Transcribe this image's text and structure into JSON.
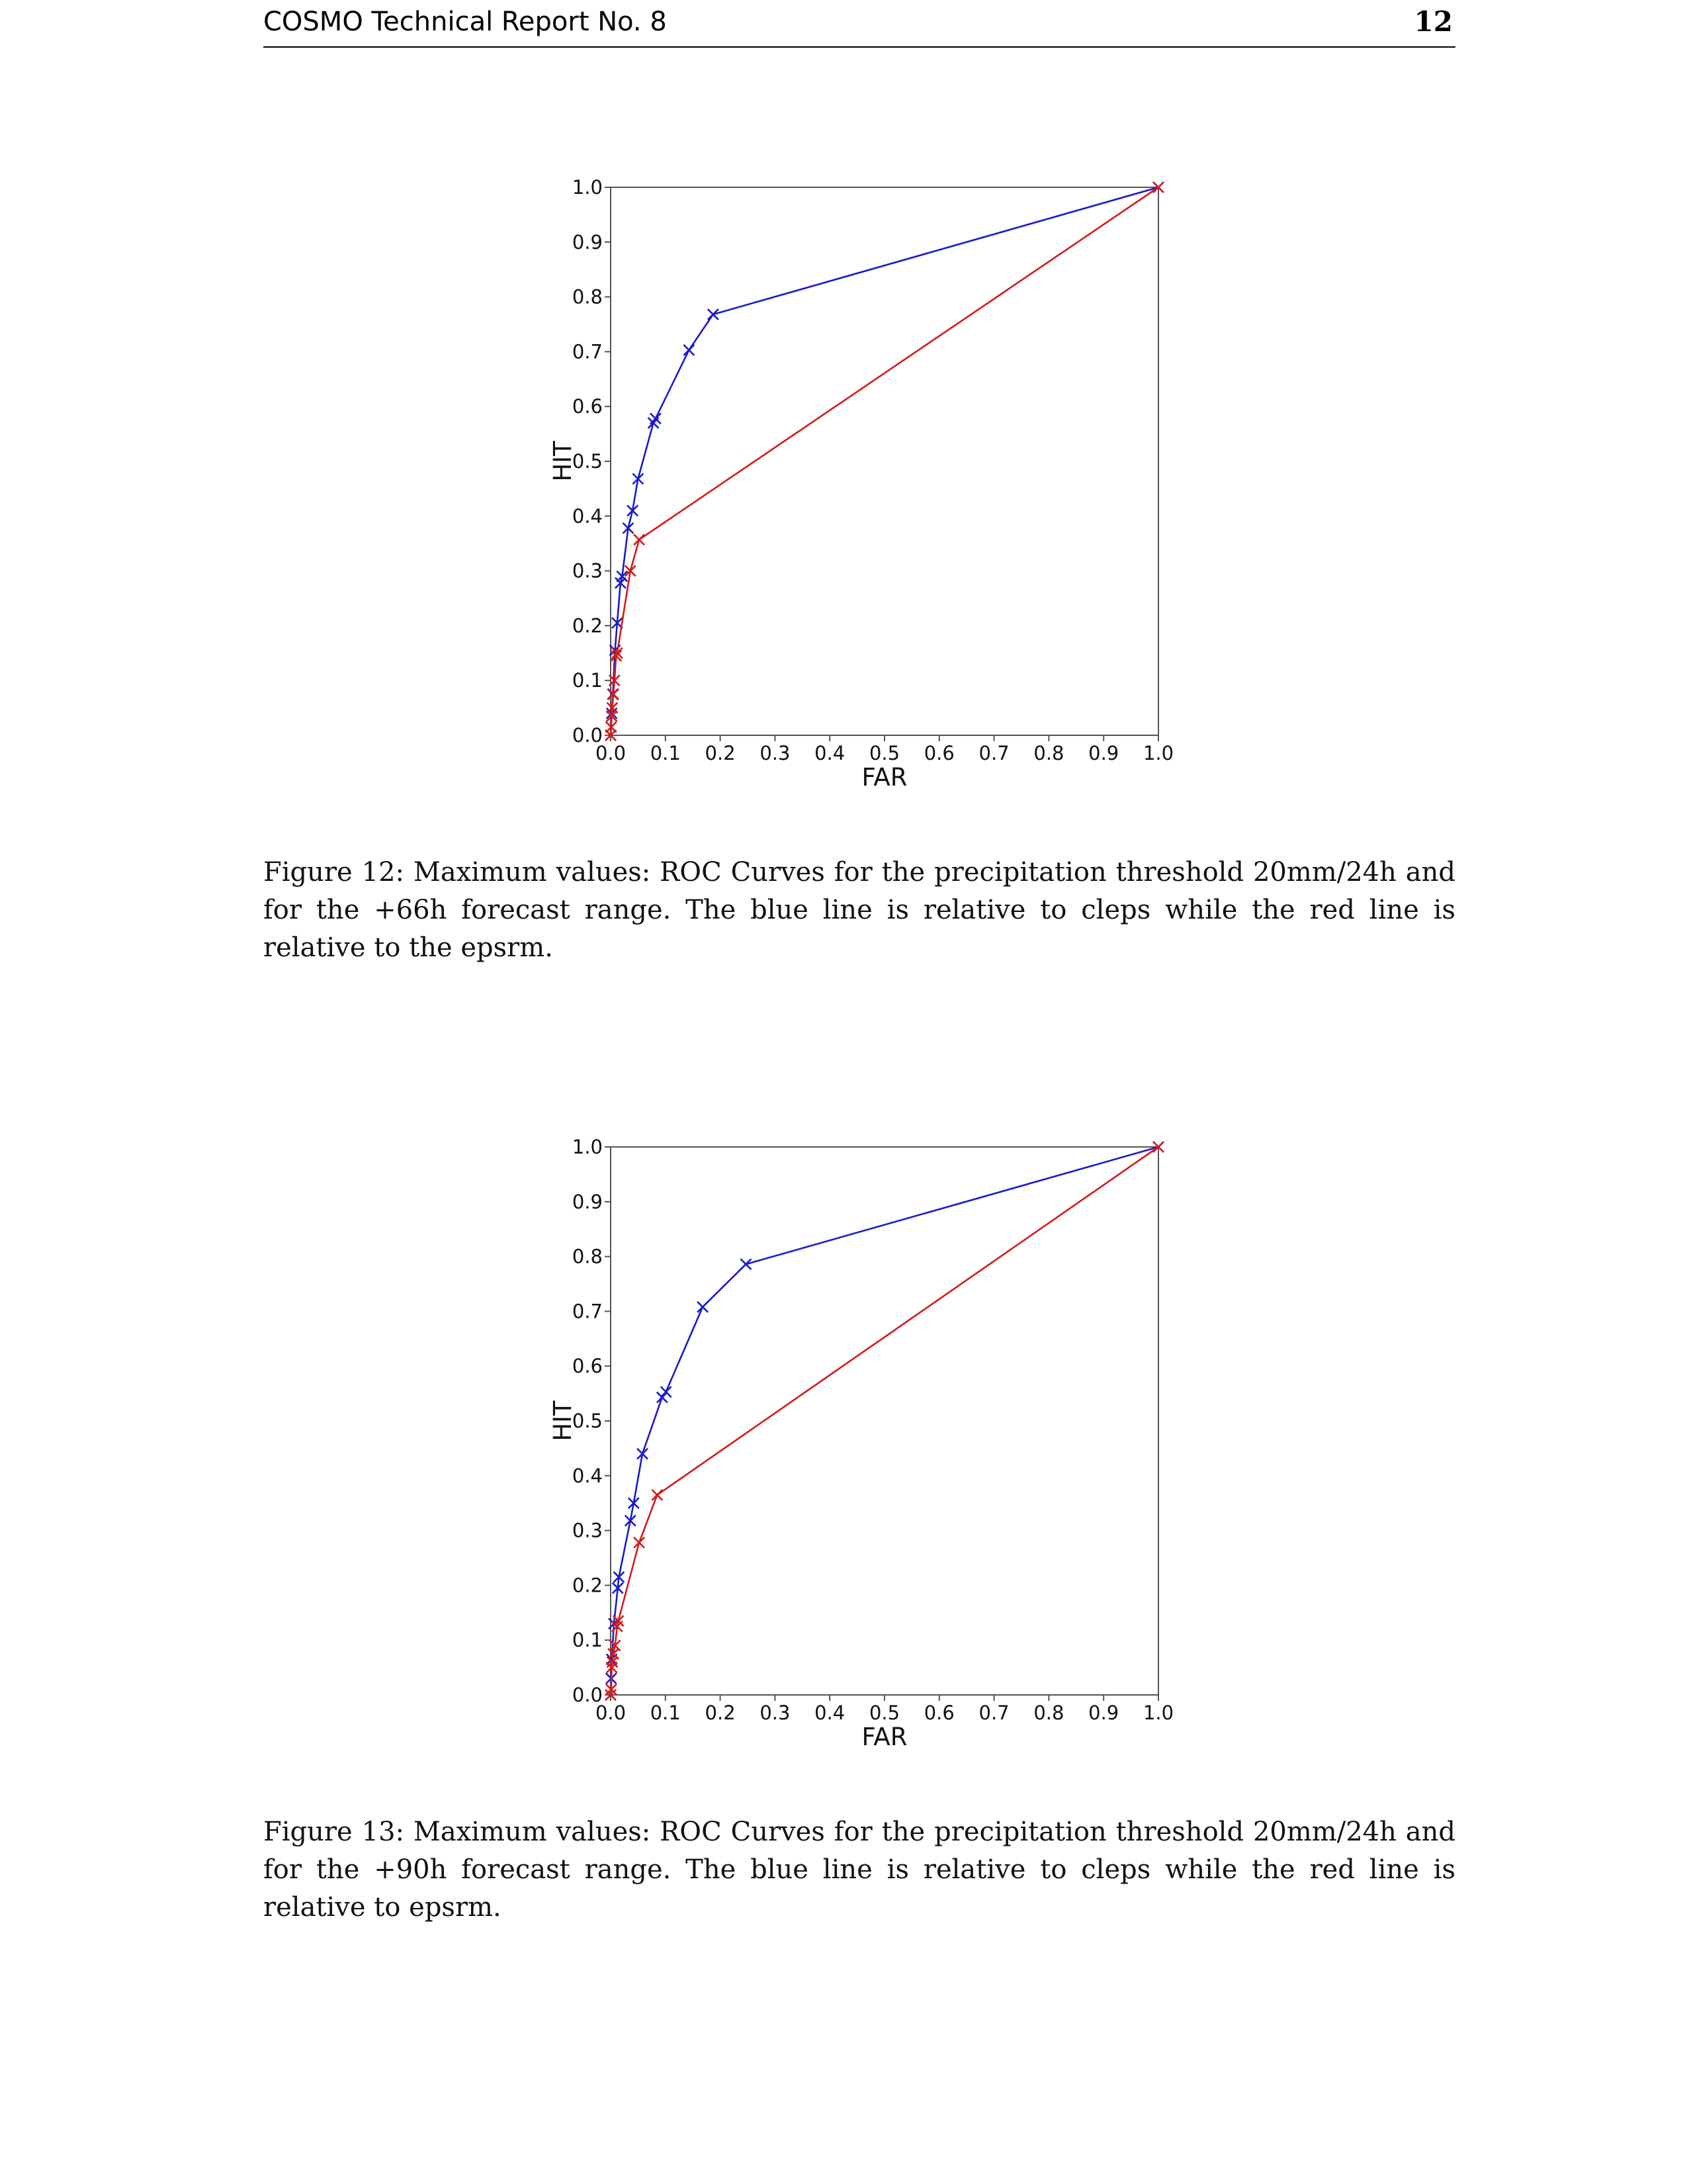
{
  "header": {
    "report_title": "COSMO Technical Report No. 8",
    "page_number": "12"
  },
  "figures": [
    {
      "caption": "Figure 12: Maximum values: ROC Curves for the precipitation threshold 20mm/24h and for the +66h forecast range. The blue line is relative to cleps while the red line is relative to the epsrm."
    },
    {
      "caption": "Figure 13: Maximum values: ROC Curves for the precipitation threshold 20mm/24h and for the +90h forecast range. The blue line is relative to cleps while the red line is relative to epsrm."
    }
  ],
  "colors": {
    "cleps": "#1a1acc",
    "epsrm": "#d41a1a"
  },
  "chart_data": [
    {
      "type": "line",
      "xlabel": "FAR",
      "ylabel": "HIT",
      "xlim": [
        0,
        1
      ],
      "ylim": [
        0,
        1
      ],
      "xticks": [
        "0.0",
        "0.1",
        "0.2",
        "0.3",
        "0.4",
        "0.5",
        "0.6",
        "0.7",
        "0.8",
        "0.9",
        "1.0"
      ],
      "yticks": [
        "0.0",
        "0.1",
        "0.2",
        "0.3",
        "0.4",
        "0.5",
        "0.6",
        "0.7",
        "0.8",
        "0.9",
        "1.0"
      ],
      "series": [
        {
          "color": "#1a1acc",
          "x": [
            0.0,
            0.002,
            0.004,
            0.008,
            0.012,
            0.018,
            0.021,
            0.032,
            0.04,
            0.05,
            0.078,
            0.082,
            0.143,
            0.187,
            1.0
          ],
          "y": [
            0.0,
            0.04,
            0.075,
            0.155,
            0.205,
            0.278,
            0.29,
            0.378,
            0.41,
            0.468,
            0.57,
            0.578,
            0.703,
            0.768,
            1.0
          ]
        },
        {
          "color": "#d41a1a",
          "x": [
            0.0,
            0.001,
            0.002,
            0.003,
            0.005,
            0.007,
            0.01,
            0.012,
            0.036,
            0.052,
            1.0
          ],
          "y": [
            0.0,
            0.015,
            0.035,
            0.05,
            0.075,
            0.1,
            0.145,
            0.15,
            0.3,
            0.357,
            1.0
          ]
        }
      ]
    },
    {
      "type": "line",
      "xlabel": "FAR",
      "ylabel": "HIT",
      "xlim": [
        0,
        1
      ],
      "ylim": [
        0,
        1
      ],
      "xticks": [
        "0.0",
        "0.1",
        "0.2",
        "0.3",
        "0.4",
        "0.5",
        "0.6",
        "0.7",
        "0.8",
        "0.9",
        "1.0"
      ],
      "yticks": [
        "0.0",
        "0.1",
        "0.2",
        "0.3",
        "0.4",
        "0.5",
        "0.6",
        "0.7",
        "0.8",
        "0.9",
        "1.0"
      ],
      "series": [
        {
          "color": "#1a1acc",
          "x": [
            0.0,
            0.001,
            0.002,
            0.006,
            0.013,
            0.015,
            0.036,
            0.042,
            0.058,
            0.094,
            0.101,
            0.168,
            0.247,
            1.0
          ],
          "y": [
            0.0,
            0.03,
            0.065,
            0.13,
            0.195,
            0.215,
            0.318,
            0.35,
            0.44,
            0.543,
            0.553,
            0.708,
            0.786,
            1.0
          ]
        },
        {
          "color": "#d41a1a",
          "x": [
            0.0,
            0.001,
            0.002,
            0.003,
            0.005,
            0.008,
            0.012,
            0.014,
            0.052,
            0.085,
            1.0
          ],
          "y": [
            0.0,
            0.01,
            0.05,
            0.06,
            0.075,
            0.09,
            0.125,
            0.135,
            0.278,
            0.365,
            1.0
          ]
        }
      ]
    }
  ]
}
